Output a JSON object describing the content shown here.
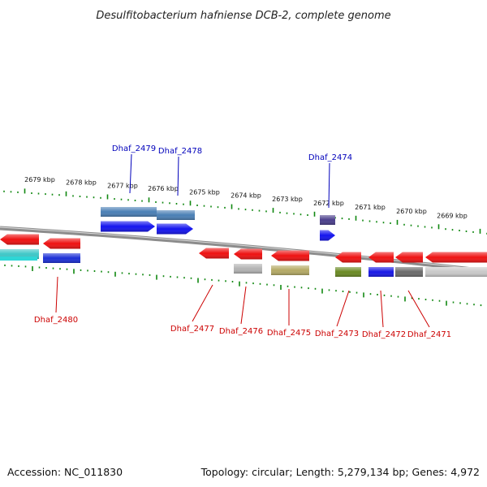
{
  "title": "Desulfitobacterium hafniense DCB-2, complete genome",
  "footer": {
    "accession": "Accession: NC_011830",
    "summary": "Topology: circular; Length: 5,279,134 bp; Genes: 4,972"
  },
  "colors": {
    "forward_label": "#0000bb",
    "reverse_label": "#cc0000",
    "tick": "#118811",
    "backbone": "#8c8c8c"
  },
  "ticks": [
    "2679 kbp",
    "2678 kbp",
    "2677 kbp",
    "2676 kbp",
    "2675 kbp",
    "2674 kbp",
    "2673 kbp",
    "2672 kbp",
    "2671 kbp",
    "2670 kbp",
    "2669 kbp"
  ],
  "forward_labels": [
    "Dhaf_2479",
    "Dhaf_2478",
    "Dhaf_2474"
  ],
  "reverse_labels": [
    "Dhaf_2480",
    "Dhaf_2477",
    "Dhaf_2476",
    "Dhaf_2475",
    "Dhaf_2473",
    "Dhaf_2472",
    "Dhaf_2471"
  ],
  "forward_genes": [
    {
      "id": "Dhaf_2479",
      "bar": "#4a7fb5",
      "labeled": true
    },
    {
      "id": "Dhaf_2478",
      "bar": "#4a7fb5",
      "labeled": true
    },
    {
      "id": "Dhaf_2474",
      "bar": "#4b3f8c",
      "labeled": true
    }
  ],
  "reverse_genes": [
    {
      "id": "gene-a",
      "arrow": "#ee1111",
      "bar": "#3ec7c7",
      "labeled": false
    },
    {
      "id": "Dhaf_2480",
      "arrow": "#ee1111",
      "bar": "#1c2fd6",
      "labeled": true
    },
    {
      "id": "Dhaf_2477",
      "arrow": "#ee1111",
      "bar": null,
      "labeled": true
    },
    {
      "id": "Dhaf_2476",
      "arrow": "#ee1111",
      "bar": "#b3b3b3",
      "labeled": true
    },
    {
      "id": "Dhaf_2475",
      "arrow": "#ee1111",
      "bar": "#b4a964",
      "labeled": true
    },
    {
      "id": "Dhaf_2473",
      "arrow": "#ee1111",
      "bar": "#6a8a23",
      "labeled": true
    },
    {
      "id": "Dhaf_2472",
      "arrow": "#ee1111",
      "bar": "#1717e6",
      "labeled": true
    },
    {
      "id": "Dhaf_2471",
      "arrow": "#ee1111",
      "bar": "#6b6b6b",
      "labeled": true
    },
    {
      "id": "gene-b",
      "arrow": "#ee1111",
      "bar": "#c8c8c8",
      "labeled": false
    }
  ]
}
